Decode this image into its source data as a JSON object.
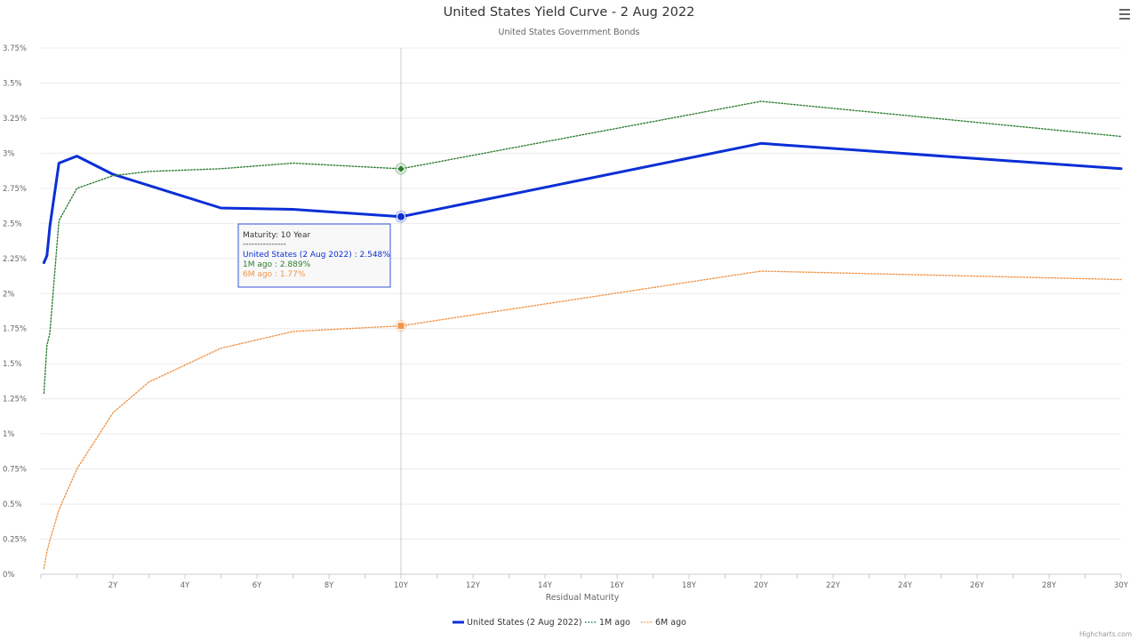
{
  "chart_data": {
    "type": "line",
    "title": "United States Yield Curve - 2 Aug 2022",
    "subtitle": "United States Government Bonds",
    "xlabel": "Residual Maturity",
    "ylabel": "",
    "x_ticks": [
      {
        "value": 2,
        "label": "2Y"
      },
      {
        "value": 4,
        "label": "4Y"
      },
      {
        "value": 6,
        "label": "6Y"
      },
      {
        "value": 8,
        "label": "8Y"
      },
      {
        "value": 10,
        "label": "10Y"
      },
      {
        "value": 12,
        "label": "12Y"
      },
      {
        "value": 14,
        "label": "14Y"
      },
      {
        "value": 16,
        "label": "16Y"
      },
      {
        "value": 18,
        "label": "18Y"
      },
      {
        "value": 20,
        "label": "20Y"
      },
      {
        "value": 22,
        "label": "22Y"
      },
      {
        "value": 24,
        "label": "24Y"
      },
      {
        "value": 26,
        "label": "26Y"
      },
      {
        "value": 28,
        "label": "28Y"
      },
      {
        "value": 30,
        "label": "30Y"
      }
    ],
    "y_ticks": [
      {
        "value": 0,
        "label": "0%"
      },
      {
        "value": 0.25,
        "label": "0.25%"
      },
      {
        "value": 0.5,
        "label": "0.5%"
      },
      {
        "value": 0.75,
        "label": "0.75%"
      },
      {
        "value": 1,
        "label": "1%"
      },
      {
        "value": 1.25,
        "label": "1.25%"
      },
      {
        "value": 1.5,
        "label": "1.5%"
      },
      {
        "value": 1.75,
        "label": "1.75%"
      },
      {
        "value": 2,
        "label": "2%"
      },
      {
        "value": 2.25,
        "label": "2.25%"
      },
      {
        "value": 2.5,
        "label": "2.5%"
      },
      {
        "value": 2.75,
        "label": "2.75%"
      },
      {
        "value": 3,
        "label": "3%"
      },
      {
        "value": 3.25,
        "label": "3.25%"
      },
      {
        "value": 3.5,
        "label": "3.5%"
      },
      {
        "value": 3.75,
        "label": "3.75%"
      }
    ],
    "xlim": [
      0,
      30
    ],
    "ylim": [
      0,
      3.75
    ],
    "grid": true,
    "legend_position": "bottom-center",
    "series": [
      {
        "name": "United States (2 Aug 2022)",
        "color": "#0b2fd6",
        "style": "solid",
        "x": [
          0.083,
          0.167,
          0.25,
          0.5,
          1,
          2,
          3,
          5,
          7,
          10,
          20,
          30
        ],
        "values": [
          2.22,
          2.27,
          2.48,
          2.93,
          2.98,
          2.85,
          2.77,
          2.61,
          2.6,
          2.548,
          3.07,
          2.89
        ]
      },
      {
        "name": "1M ago",
        "color": "#2e7d32",
        "style": "dotted",
        "x": [
          0.083,
          0.167,
          0.25,
          0.5,
          1,
          2,
          3,
          5,
          7,
          10,
          20,
          30
        ],
        "values": [
          1.29,
          1.63,
          1.72,
          2.52,
          2.75,
          2.84,
          2.87,
          2.89,
          2.93,
          2.889,
          3.37,
          3.12
        ]
      },
      {
        "name": "6M ago",
        "color": "#f0954a",
        "style": "dotted",
        "x": [
          0.083,
          0.167,
          0.25,
          0.5,
          1,
          2,
          3,
          5,
          7,
          10,
          20,
          30
        ],
        "values": [
          0.04,
          0.16,
          0.24,
          0.46,
          0.75,
          1.15,
          1.37,
          1.61,
          1.73,
          1.77,
          2.16,
          2.1
        ]
      }
    ],
    "crosshair_x": 10,
    "tooltip": {
      "header": "Maturity: 10 Year",
      "separator": "---------------",
      "lines": [
        {
          "text": "United States (2 Aug 2022) : 2.548%",
          "color": "#0b2fd6"
        },
        {
          "text": "1M ago : 2.889%",
          "color": "#2e7d32"
        },
        {
          "text": "6M ago : 1.77%",
          "color": "#f0954a"
        }
      ]
    },
    "credits": "Highcharts.com"
  },
  "menu_icon": "hamburger-menu-icon"
}
